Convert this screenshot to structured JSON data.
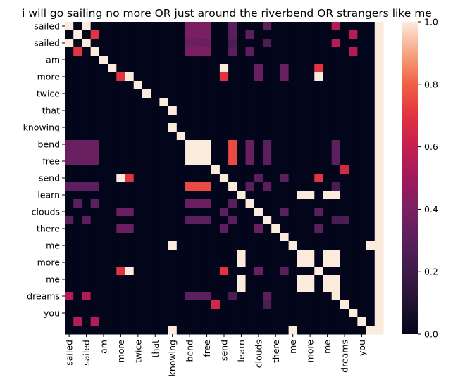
{
  "chart_data": {
    "type": "heatmap",
    "title": "i will go sailing no more OR just around the riverbend OR strangers like me",
    "xlabel": "",
    "ylabel": "",
    "labels": [
      "sailed",
      "",
      "sailed",
      "",
      "am",
      "",
      "more",
      "",
      "twice",
      "",
      "that",
      "",
      "knowing",
      "",
      "bend",
      "",
      "",
      "free",
      "",
      "send",
      "",
      "learn",
      "",
      "clouds",
      "",
      "there",
      "",
      "me",
      "",
      "more",
      "",
      "me",
      "",
      "dreams",
      "",
      "you",
      ""
    ],
    "x_tick_labels": [
      "sailed",
      "sailed",
      "am",
      "more",
      "twice",
      "that",
      "knowing",
      "bend",
      "free",
      "send",
      "learn",
      "clouds",
      "there",
      "me",
      "more",
      "me",
      "dreams",
      "you"
    ],
    "y_tick_labels": [
      "sailed",
      "sailed",
      "am",
      "more",
      "twice",
      "that",
      "knowing",
      "bend",
      "free",
      "send",
      "learn",
      "clouds",
      "there",
      "me",
      "more",
      "me",
      "dreams",
      "you"
    ],
    "colorbar": {
      "min": 0.0,
      "max": 1.0,
      "ticks": [
        "0.0",
        "0.2",
        "0.4",
        "0.6",
        "0.8",
        "1.0"
      ]
    },
    "matrix": [
      [
        1,
        0,
        1,
        0,
        0,
        0,
        0,
        0,
        0,
        0,
        0,
        0,
        0,
        0,
        0.4,
        0.4,
        0.4,
        0,
        0,
        0.3,
        0,
        0,
        0,
        0.3,
        0,
        0,
        0,
        0,
        0,
        0,
        0,
        0.55,
        0,
        0,
        0,
        0
      ],
      [
        0,
        1,
        0,
        0.7,
        0,
        0,
        0,
        0,
        0,
        0,
        0,
        0,
        0,
        0,
        0.4,
        0.4,
        0.4,
        0,
        0,
        0.3,
        0,
        0.3,
        0,
        0,
        0,
        0,
        0,
        0,
        0,
        0,
        0,
        0,
        0,
        0.55,
        0,
        0
      ],
      [
        1,
        0,
        1,
        0,
        0,
        0,
        0,
        0,
        0,
        0,
        0,
        0,
        0,
        0,
        0.35,
        0.35,
        0.35,
        0,
        0,
        0.25,
        0,
        0,
        0,
        0.25,
        0,
        0,
        0,
        0,
        0,
        0,
        0,
        0.55,
        0,
        0,
        0,
        0
      ],
      [
        0,
        0.7,
        0,
        1,
        0,
        0,
        0,
        0,
        0,
        0,
        0,
        0,
        0,
        0,
        0.4,
        0.4,
        0.4,
        0,
        0,
        0.3,
        0,
        0.3,
        0,
        0,
        0,
        0,
        0,
        0,
        0,
        0,
        0,
        0,
        0,
        0.55,
        0,
        0
      ],
      [
        0,
        0,
        0,
        0,
        1,
        0,
        0,
        0,
        0,
        0,
        0,
        0,
        0,
        0,
        0,
        0,
        0,
        0,
        0,
        0,
        0,
        0,
        0,
        0,
        0,
        0,
        0,
        0,
        0,
        0,
        0,
        0,
        0,
        0,
        0,
        0
      ],
      [
        0,
        0,
        0,
        0,
        0,
        1,
        0,
        0,
        0,
        0,
        0,
        0,
        0,
        0,
        0,
        0,
        0,
        0,
        1,
        0,
        0,
        0,
        0.35,
        0,
        0,
        0.35,
        0,
        0,
        0,
        0.7,
        0,
        0,
        0,
        0,
        0,
        0
      ],
      [
        0,
        0,
        0,
        0,
        0,
        0,
        0.7,
        1,
        0,
        0,
        0,
        0,
        0,
        0,
        0,
        0,
        0,
        0,
        0.7,
        0,
        0,
        0,
        0.35,
        0,
        0,
        0.35,
        0,
        0,
        0,
        1,
        0,
        0,
        0,
        0,
        0,
        0
      ],
      [
        0,
        0,
        0,
        0,
        0,
        0,
        0,
        0,
        1,
        0,
        0,
        0,
        0,
        0,
        0,
        0,
        0,
        0,
        0,
        0,
        0,
        0,
        0,
        0,
        0,
        0,
        0,
        0,
        0,
        0,
        0,
        0,
        0,
        0,
        0,
        0
      ],
      [
        0,
        0,
        0,
        0,
        0,
        0,
        0,
        0,
        0,
        1,
        0,
        0,
        0,
        0,
        0,
        0,
        0,
        0,
        0,
        0,
        0,
        0,
        0,
        0,
        0,
        0,
        0,
        0,
        0,
        0,
        0,
        0,
        0,
        0,
        0,
        0
      ],
      [
        0,
        0,
        0,
        0,
        0,
        0,
        0,
        0,
        0,
        0,
        0,
        1,
        0,
        0,
        0,
        0,
        0,
        0,
        0,
        0,
        0,
        0,
        0,
        0,
        0,
        0,
        0,
        0,
        0,
        0,
        0,
        0,
        0,
        0,
        0,
        0
      ],
      [
        0,
        0,
        0,
        0,
        0,
        0,
        0,
        0,
        0,
        0,
        0,
        0,
        1,
        0,
        0,
        0,
        0,
        0,
        0,
        0,
        0,
        0,
        0,
        0,
        0,
        0,
        0,
        0,
        0,
        0,
        0,
        0,
        0,
        0,
        0,
        0
      ],
      [
        0,
        0,
        0,
        0,
        0,
        0,
        0,
        0,
        0,
        0,
        0,
        0,
        0,
        0,
        0,
        0,
        0,
        0,
        0,
        0,
        0,
        0,
        0,
        0,
        0,
        0,
        0,
        0,
        0,
        0,
        0,
        0,
        0,
        0,
        0,
        0
      ],
      [
        0,
        0,
        0,
        0,
        0,
        0,
        0,
        0,
        0,
        0,
        0,
        0,
        1,
        0,
        0,
        0,
        0,
        0,
        0,
        0,
        0,
        0,
        0,
        0,
        0,
        0,
        0,
        0,
        0,
        0,
        0,
        0,
        0,
        0,
        0,
        0
      ],
      [
        0,
        0,
        0,
        0,
        0,
        0,
        0,
        0,
        0,
        0,
        0,
        0,
        0,
        1,
        0,
        0,
        0,
        0,
        0,
        0,
        0,
        0,
        0,
        0,
        0,
        0,
        0,
        0,
        0,
        0,
        0,
        0,
        0,
        0,
        0,
        0
      ],
      [
        0.35,
        0.35,
        0.35,
        0.35,
        0,
        0,
        0,
        0,
        0,
        0,
        0,
        0,
        0,
        0,
        1,
        1,
        1,
        0,
        0,
        0.75,
        0,
        0.35,
        0,
        0.3,
        0,
        0,
        0,
        0,
        0,
        0,
        0,
        0.3,
        0,
        0,
        0,
        0
      ],
      [
        0.35,
        0.35,
        0.35,
        0.35,
        0,
        0,
        0,
        0,
        0,
        0,
        0,
        0,
        0,
        0,
        1,
        1,
        1,
        0,
        0,
        0.75,
        0,
        0.35,
        0,
        0.3,
        0,
        0,
        0,
        0,
        0,
        0,
        0,
        0.3,
        0,
        0,
        0,
        0
      ],
      [
        0.35,
        0.35,
        0.35,
        0.35,
        0,
        0,
        0,
        0,
        0,
        0,
        0,
        0,
        0,
        0,
        1,
        1,
        1,
        0,
        0,
        0.75,
        0,
        0.35,
        0,
        0.3,
        0,
        0,
        0,
        0,
        0,
        0,
        0,
        0.3,
        0,
        0,
        0,
        0
      ],
      [
        0,
        0,
        0,
        0,
        0,
        0,
        0,
        0,
        0,
        0,
        0,
        0,
        0,
        0,
        0,
        0,
        0,
        1,
        0,
        0,
        0,
        0,
        0,
        0,
        0,
        0,
        0,
        0,
        0,
        0,
        0,
        0,
        0.65,
        0,
        0,
        0
      ],
      [
        0,
        0,
        0,
        0,
        0,
        0,
        1,
        0.7,
        0,
        0,
        0,
        0,
        0,
        0,
        0,
        0,
        0,
        0,
        1,
        0,
        0,
        0,
        0.3,
        0,
        0,
        0.3,
        0,
        0,
        0,
        0.7,
        0,
        0,
        0,
        0,
        0,
        0
      ],
      [
        0.3,
        0.3,
        0.3,
        0.3,
        0,
        0,
        0,
        0,
        0,
        0,
        0,
        0,
        0,
        0,
        0.75,
        0.75,
        0.75,
        0,
        0,
        1,
        0,
        0.3,
        0,
        0.3,
        0,
        0,
        0,
        0,
        0,
        0,
        0,
        0.25,
        0,
        0,
        0,
        0
      ],
      [
        0,
        0,
        0,
        0,
        0,
        0,
        0,
        0,
        0,
        0,
        0,
        0,
        0,
        0,
        0,
        0,
        0,
        0,
        0,
        0,
        1,
        0,
        0,
        0,
        0,
        0,
        0,
        1,
        1,
        0,
        1,
        1,
        0,
        0,
        0,
        0
      ],
      [
        0,
        0.3,
        0,
        0.3,
        0,
        0,
        0,
        0,
        0,
        0,
        0,
        0,
        0,
        0,
        0.35,
        0.35,
        0.35,
        0,
        0,
        0.3,
        0,
        1,
        0,
        0,
        0,
        0,
        0,
        0,
        0,
        0,
        0,
        0,
        0,
        0,
        0,
        0
      ],
      [
        0,
        0,
        0,
        0,
        0,
        0,
        0.35,
        0.35,
        0,
        0,
        0,
        0,
        0,
        0,
        0,
        0,
        0,
        0,
        0.3,
        0,
        0,
        0,
        1,
        0,
        0,
        0.3,
        0,
        0,
        0,
        0.3,
        0,
        0,
        0,
        0,
        0,
        0
      ],
      [
        0.3,
        0,
        0.3,
        0,
        0,
        0,
        0,
        0,
        0,
        0,
        0,
        0,
        0,
        0,
        0.3,
        0.3,
        0.3,
        0,
        0,
        0.3,
        0,
        0,
        0,
        1,
        0,
        0,
        0,
        0,
        0,
        0,
        0,
        0.25,
        0.25,
        0,
        0,
        0
      ],
      [
        0,
        0,
        0,
        0,
        0,
        0,
        0.35,
        0.35,
        0,
        0,
        0,
        0,
        0,
        0,
        0,
        0,
        0,
        0,
        0.3,
        0,
        0,
        0,
        0.35,
        0,
        1,
        0,
        0,
        0,
        0,
        0.3,
        0,
        0,
        0,
        0,
        0,
        0
      ],
      [
        0,
        0,
        0,
        0,
        0,
        0,
        0,
        0,
        0,
        0,
        0,
        0,
        0,
        0,
        0,
        0,
        0,
        0,
        0,
        0,
        0,
        0,
        0,
        0,
        0,
        1,
        0,
        0,
        0,
        0,
        0,
        0,
        0,
        0,
        0,
        0
      ],
      [
        0,
        0,
        0,
        0,
        0,
        0,
        0,
        0,
        0,
        0,
        0,
        0,
        1,
        0,
        0,
        0,
        0,
        0,
        0,
        0,
        0,
        0,
        0,
        0,
        0,
        0,
        1,
        0,
        0,
        0,
        0,
        0,
        0,
        0,
        0,
        1
      ],
      [
        0,
        0,
        0,
        0,
        0,
        0,
        0,
        0,
        0,
        0,
        0,
        0,
        0,
        0,
        0,
        0,
        0,
        0,
        0,
        0,
        1,
        0,
        0,
        0,
        0,
        0,
        0,
        1,
        1,
        0,
        1,
        1,
        0,
        0,
        0,
        0
      ],
      [
        0,
        0,
        0,
        0,
        0,
        0,
        0,
        0,
        0,
        0,
        0,
        0,
        0,
        0,
        0,
        0,
        0,
        0,
        0,
        0,
        1,
        0,
        0,
        0,
        0,
        0,
        0,
        1,
        1,
        0,
        1,
        1,
        0,
        0,
        0,
        0
      ],
      [
        0,
        0,
        0,
        0,
        0,
        0,
        0.7,
        1,
        0,
        0,
        0,
        0,
        0,
        0,
        0,
        0,
        0,
        0,
        0.7,
        0,
        0,
        0,
        0.35,
        0,
        0,
        0.3,
        0,
        0,
        0,
        1,
        0,
        0,
        0,
        0,
        0,
        0
      ],
      [
        0,
        0,
        0,
        0,
        0,
        0,
        0,
        0,
        0,
        0,
        0,
        0,
        0,
        0,
        0,
        0,
        0,
        0,
        0,
        0,
        1,
        0,
        0,
        0,
        0,
        0,
        0,
        1,
        1,
        0,
        1,
        1,
        0,
        0,
        0,
        0
      ],
      [
        0,
        0,
        0,
        0,
        0,
        0,
        0,
        0,
        0,
        0,
        0,
        0,
        0,
        0,
        0,
        0,
        0,
        0,
        0,
        0,
        1,
        0,
        0,
        0,
        0,
        0,
        0,
        1,
        1,
        0,
        1,
        1,
        0,
        0,
        0,
        0
      ],
      [
        0.55,
        0,
        0.55,
        0,
        0,
        0,
        0,
        0,
        0,
        0,
        0,
        0,
        0,
        0,
        0.3,
        0.3,
        0.3,
        0,
        0,
        0.25,
        0,
        0,
        0,
        0.3,
        0,
        0,
        0,
        0,
        0,
        0,
        0,
        1,
        0,
        0,
        0,
        0
      ],
      [
        0,
        0,
        0,
        0,
        0,
        0,
        0,
        0,
        0,
        0,
        0,
        0,
        0,
        0,
        0,
        0,
        0,
        0.65,
        0,
        0,
        0,
        0,
        0,
        0.25,
        0,
        0,
        0,
        0,
        0,
        0,
        0,
        0,
        1,
        0,
        0,
        0
      ],
      [
        0,
        0,
        0,
        0,
        0,
        0,
        0,
        0,
        0,
        0,
        0,
        0,
        0,
        0,
        0,
        0,
        0,
        0,
        0,
        0,
        0,
        0,
        0,
        0,
        0,
        0,
        0,
        0,
        0,
        0,
        0,
        0,
        0,
        1,
        0,
        0
      ],
      [
        0,
        0.55,
        0,
        0.55,
        0,
        0,
        0,
        0,
        0,
        0,
        0,
        0,
        0,
        0,
        0,
        0,
        0,
        0,
        0,
        0,
        0,
        0,
        0,
        0,
        0,
        0,
        0,
        0,
        0,
        0,
        0,
        0,
        0,
        0,
        1,
        0
      ],
      [
        0,
        0,
        0,
        0,
        0,
        0,
        0,
        0,
        0,
        0,
        0,
        0,
        1,
        0,
        0,
        0,
        0,
        0,
        0,
        0,
        0,
        0,
        0,
        0,
        0,
        0,
        1,
        0,
        0,
        0,
        0,
        0,
        0,
        0,
        0,
        1
      ]
    ]
  }
}
